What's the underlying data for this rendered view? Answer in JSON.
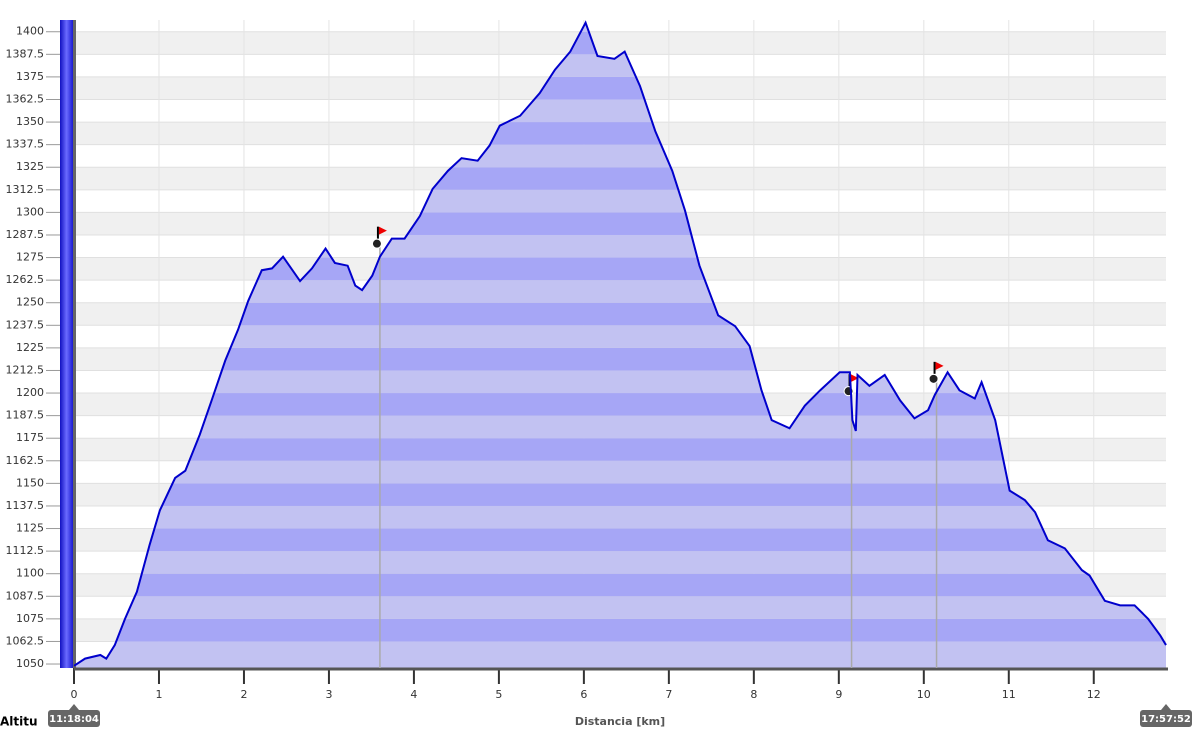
{
  "chart_data": {
    "type": "area",
    "ylabel": "Altitu",
    "xlabel": "Distancia [km]",
    "start_label": "11:18:04",
    "end_label": "17:57:52",
    "xlim": [
      0,
      12.85
    ],
    "ylim": [
      1047.8,
      1406.5
    ],
    "xticks": [
      0,
      1,
      2,
      3,
      4,
      5,
      6,
      7,
      8,
      9,
      10,
      11,
      12
    ],
    "yticks": [
      1050,
      1062.5,
      1075,
      1087.5,
      1100,
      1112.5,
      1125,
      1137.5,
      1150,
      1162.5,
      1175,
      1187.5,
      1200,
      1212.5,
      1225,
      1237.5,
      1250,
      1262.5,
      1275,
      1287.5,
      1300,
      1312.5,
      1325,
      1337.5,
      1350,
      1362.5,
      1375,
      1387.5,
      1400
    ],
    "grid": true,
    "waypoints": [
      3.6,
      9.15,
      10.15
    ],
    "x": [
      0,
      0.13,
      0.31,
      0.38,
      0.48,
      0.6,
      0.74,
      0.89,
      1.01,
      1.19,
      1.31,
      1.48,
      1.62,
      1.78,
      1.93,
      2.05,
      2.21,
      2.33,
      2.46,
      2.66,
      2.8,
      2.96,
      3.07,
      3.22,
      3.31,
      3.39,
      3.51,
      3.6,
      3.74,
      3.89,
      4.07,
      4.22,
      4.4,
      4.56,
      4.75,
      4.89,
      5.01,
      5.25,
      5.48,
      5.66,
      5.84,
      6.02,
      6.16,
      6.36,
      6.48,
      6.66,
      6.84,
      7.04,
      7.19,
      7.36,
      7.58,
      7.78,
      7.95,
      8.09,
      8.21,
      8.42,
      8.6,
      8.78,
      9.01,
      9.13,
      9.16,
      9.2,
      9.22,
      9.36,
      9.54,
      9.72,
      9.89,
      10.05,
      10.13,
      10.28,
      10.42,
      10.6,
      10.68,
      10.84,
      11.01,
      11.19,
      11.31,
      11.46,
      11.66,
      11.86,
      11.95,
      12.13,
      12.31,
      12.48,
      12.64,
      12.78,
      12.85
    ],
    "series": [
      {
        "color": "#0000cc",
        "fill": "#a6a6f6",
        "fill_alt": "#c2c2f2",
        "values": [
          1049,
          1053,
          1055,
          1053,
          1060.5,
          1075,
          1090,
          1116,
          1135,
          1153,
          1157,
          1177,
          1196,
          1218,
          1235,
          1251,
          1268,
          1269,
          1275.5,
          1262,
          1269,
          1280,
          1272,
          1270.5,
          1259.5,
          1257,
          1265,
          1275.5,
          1285.5,
          1285.5,
          1298,
          1313,
          1323,
          1330,
          1328.6,
          1337,
          1348,
          1353.5,
          1366,
          1379,
          1389,
          1405,
          1386.6,
          1385,
          1389,
          1370,
          1345,
          1323,
          1301,
          1270.5,
          1243,
          1237,
          1226,
          1201.5,
          1185,
          1180.5,
          1193,
          1201.5,
          1211.5,
          1211.5,
          1185,
          1179,
          1210,
          1204,
          1210,
          1196,
          1186,
          1190.5,
          1199,
          1211.5,
          1201.5,
          1197,
          1206,
          1185,
          1146,
          1140.7,
          1134,
          1118.5,
          1114,
          1102,
          1099,
          1085,
          1082.5,
          1082.5,
          1075,
          1066,
          1060.5
        ]
      }
    ]
  }
}
